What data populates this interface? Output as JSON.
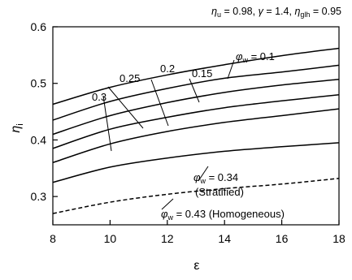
{
  "chart_data": {
    "type": "line",
    "title": "",
    "parameters_text": {
      "eta_u": "0.98",
      "gamma": "1.4",
      "eta_glh": "0.95"
    },
    "xlabel": "ε",
    "ylabel_symbol": "η",
    "ylabel_sub": "i",
    "xlim": [
      8,
      18
    ],
    "ylim": [
      0.25,
      0.6
    ],
    "xticks": [
      8,
      10,
      12,
      14,
      16,
      18
    ],
    "yticks": [
      0.3,
      0.4,
      0.5,
      0.6
    ],
    "xtick_labels": [
      "8",
      "10",
      "12",
      "14",
      "16",
      "18"
    ],
    "ytick_labels": [
      "0.3",
      "0.4",
      "0.5",
      "0.6"
    ],
    "grid": false,
    "series": [
      {
        "name": "0.1",
        "style": "solid",
        "x": [
          8,
          10,
          12,
          14,
          16,
          18
        ],
        "y": [
          0.463,
          0.493,
          0.515,
          0.533,
          0.549,
          0.562
        ]
      },
      {
        "name": "0.15",
        "style": "solid",
        "x": [
          8,
          10,
          12,
          14,
          16,
          18
        ],
        "y": [
          0.435,
          0.468,
          0.491,
          0.509,
          0.52,
          0.532
        ]
      },
      {
        "name": "0.2",
        "style": "solid",
        "x": [
          8,
          10,
          12,
          14,
          16,
          18
        ],
        "y": [
          0.41,
          0.443,
          0.466,
          0.484,
          0.497,
          0.507
        ]
      },
      {
        "name": "0.25",
        "style": "solid",
        "x": [
          8,
          10,
          12,
          14,
          16,
          18
        ],
        "y": [
          0.385,
          0.419,
          0.44,
          0.457,
          0.469,
          0.48
        ]
      },
      {
        "name": "0.3",
        "style": "solid",
        "x": [
          8,
          10,
          12,
          14,
          16,
          18
        ],
        "y": [
          0.36,
          0.393,
          0.415,
          0.431,
          0.443,
          0.455
        ]
      },
      {
        "name": "0.34",
        "style": "solid",
        "x": [
          8,
          10,
          12,
          14,
          16,
          18
        ],
        "y": [
          0.325,
          0.352,
          0.368,
          0.38,
          0.388,
          0.395
        ]
      },
      {
        "name": "0.43",
        "style": "dashed",
        "x": [
          8,
          10,
          12,
          14,
          16,
          18
        ],
        "y": [
          0.27,
          0.29,
          0.304,
          0.314,
          0.322,
          0.332
        ]
      }
    ],
    "annotations": [
      {
        "phi_sym": "φ",
        "phi_sub": "w",
        "text": " = 0.1"
      },
      {
        "text": "0.15"
      },
      {
        "text": "0.2"
      },
      {
        "text": "0.25"
      },
      {
        "text": "0.3"
      },
      {
        "phi_sym": "φ",
        "phi_sub": "w",
        "text": " = 0.34",
        "line2": "(Stratified)"
      },
      {
        "phi_sym": "φ",
        "phi_sub": "w",
        "text": " = 0.43 (Homogeneous)"
      }
    ]
  }
}
